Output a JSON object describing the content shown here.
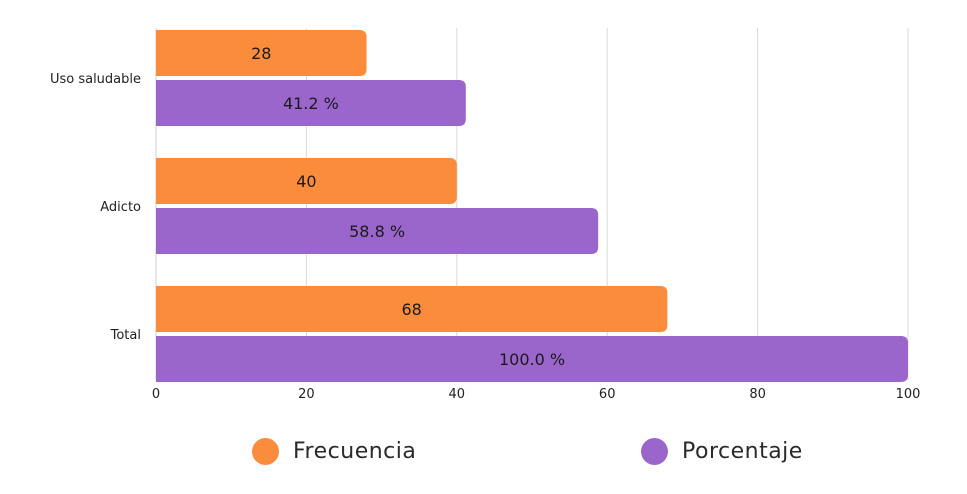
{
  "chart_data": {
    "type": "bar",
    "orientation": "horizontal",
    "categories": [
      "Uso saludable",
      "Adicto",
      "Total"
    ],
    "series": [
      {
        "name": "Frecuencia",
        "color": "#FA8C3C",
        "values": [
          28,
          40,
          68
        ],
        "labels": [
          "28",
          "40",
          "68"
        ]
      },
      {
        "name": "Porcentaje",
        "color": "#9B66CC",
        "values": [
          41.2,
          58.8,
          100.0
        ],
        "labels": [
          "41.2 %",
          "58.8 %",
          "100.0 %"
        ]
      }
    ],
    "xlim": [
      0,
      100
    ],
    "xticks": [
      "0",
      "20",
      "40",
      "60",
      "80",
      "100"
    ],
    "title": "",
    "xlabel": "",
    "ylabel": "",
    "grid": "vertical",
    "legend_position": "bottom"
  }
}
